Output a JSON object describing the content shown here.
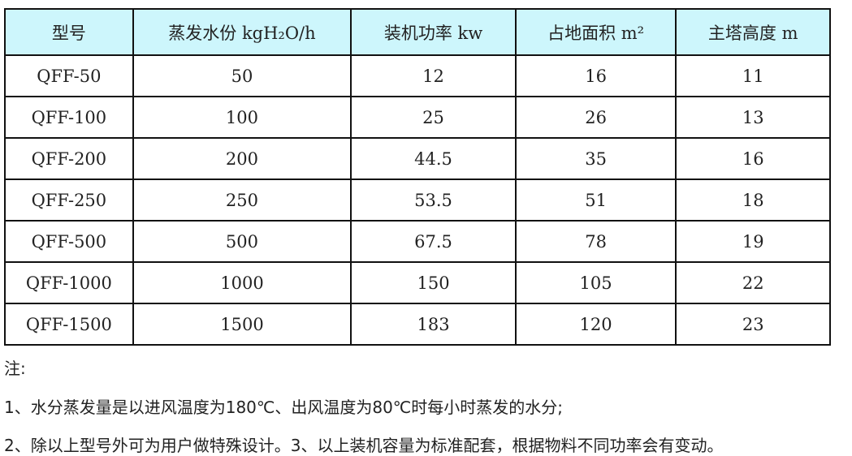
{
  "table": {
    "headers": [
      "型号",
      "蒸发水份 kgH₂O/h",
      "装机功率 kw",
      "占地面积 m²",
      "主塔高度 m"
    ],
    "rows": [
      [
        "QFF-50",
        "50",
        "12",
        "16",
        "11"
      ],
      [
        "QFF-100",
        "100",
        "25",
        "26",
        "13"
      ],
      [
        "QFF-200",
        "200",
        "44.5",
        "35",
        "16"
      ],
      [
        "QFF-250",
        "250",
        "53.5",
        "51",
        "18"
      ],
      [
        "QFF-500",
        "500",
        "67.5",
        "78",
        "19"
      ],
      [
        "QFF-1000",
        "1000",
        "150",
        "105",
        "22"
      ],
      [
        "QFF-1500",
        "1500",
        "183",
        "120",
        "23"
      ]
    ],
    "header_bg": "#cdf6fc"
  },
  "notes": {
    "title": "注:",
    "line1": "1、水分蒸发量是以进风温度为180℃、出风温度为80℃时每小时蒸发的水分;",
    "line2": "2、除以上型号外可为用户做特殊设计。3、以上装机容量为标准配套，根据物料不同功率会有变动。"
  }
}
